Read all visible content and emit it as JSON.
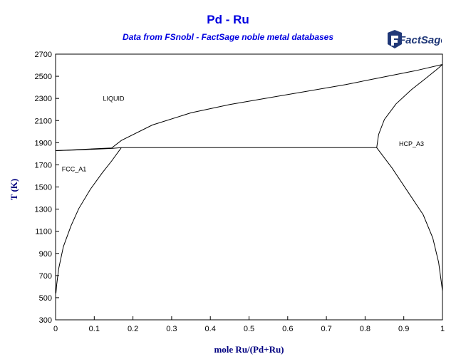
{
  "chart_data": {
    "type": "line",
    "title": "Pd - Ru",
    "subtitle": "Data from FSnobl - FactSage noble metal databases",
    "xlabel": "mole Ru/(Pd+Ru)",
    "ylabel": "T (K)",
    "xlim": [
      0,
      1
    ],
    "ylim": [
      300,
      2700
    ],
    "xticks": [
      "0",
      "0.1",
      "0.2",
      "0.3",
      "0.4",
      "0.5",
      "0.6",
      "0.7",
      "0.8",
      "0.9",
      "1"
    ],
    "yticks": [
      "300",
      "500",
      "700",
      "900",
      "1100",
      "1300",
      "1500",
      "1700",
      "1900",
      "2100",
      "2300",
      "2500",
      "2700"
    ],
    "grid": false,
    "logo_text": "FactSage",
    "region_labels": [
      {
        "text": "LIQUID",
        "x": 0.15,
        "y": 2280
      },
      {
        "text": "FCC_A1",
        "x": 0.048,
        "y": 1640
      },
      {
        "text": "HCP_A3",
        "x": 0.92,
        "y": 1870
      }
    ],
    "series": [
      {
        "x": [
          0,
          0.05,
          0.1,
          0.145,
          0.17,
          0.25,
          0.35,
          0.45,
          0.55,
          0.65,
          0.75,
          0.85,
          0.93,
          1.0
        ],
        "y": [
          1828,
          1836,
          1845,
          1852,
          1920,
          2060,
          2170,
          2245,
          2305,
          2365,
          2425,
          2495,
          2550,
          2607
        ]
      },
      {
        "x": [
          0,
          0.05,
          0.1,
          0.145,
          0.17
        ],
        "y": [
          1828,
          1834,
          1841,
          1848,
          1855
        ]
      },
      {
        "x": [
          0.17,
          0.145,
          0.12,
          0.09,
          0.06,
          0.04,
          0.02,
          0.008,
          0.003,
          0.001
        ],
        "y": [
          1855,
          1735,
          1625,
          1480,
          1305,
          1150,
          960,
          760,
          620,
          540
        ]
      },
      {
        "x": [
          0.17,
          0.83
        ],
        "y": [
          1855,
          1855
        ]
      },
      {
        "x": [
          0.83,
          0.835,
          0.85,
          0.88,
          0.92,
          0.96,
          0.99,
          1.0
        ],
        "y": [
          1855,
          1975,
          2110,
          2250,
          2380,
          2490,
          2575,
          2607
        ]
      },
      {
        "x": [
          0.83,
          0.87,
          0.91,
          0.95,
          0.975,
          0.99,
          0.997,
          1.0
        ],
        "y": [
          1855,
          1670,
          1460,
          1250,
          1040,
          820,
          640,
          560
        ]
      }
    ]
  }
}
